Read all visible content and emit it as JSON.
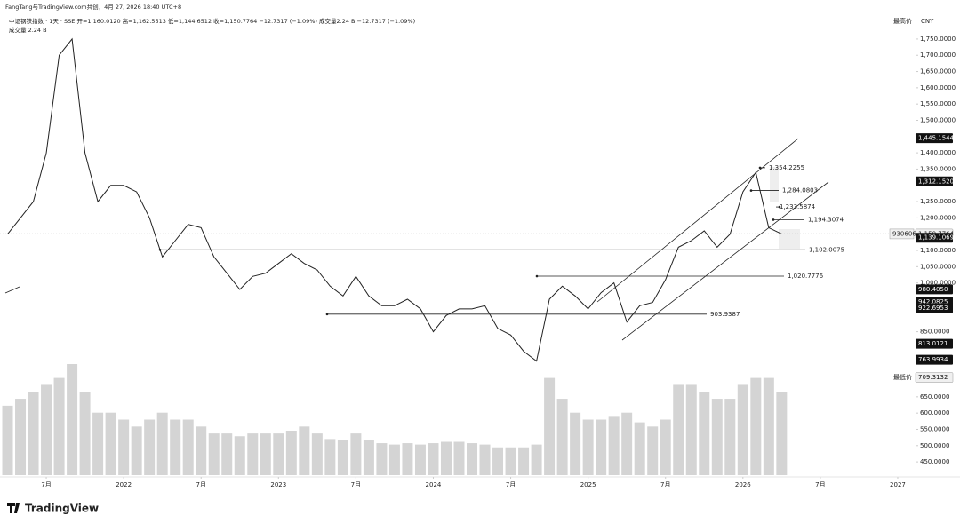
{
  "header": {
    "credit": "FangTang与TradingView.com共创，4月 27, 2026 18:40 UTC+8",
    "symbol_line": "中证钢铁指数 · 1天 · SSE  开=1,160.0120  高=1,162.5513  低=1,144.6512  收=1,150.7764  −12.7317 (−1.09%)  成交量2.24 B  −12.7317 (−1.09%)",
    "volume_line": "成交量  2.24 B"
  },
  "chart_data": {
    "type": "line",
    "x": [
      "2021-04",
      "2021-05",
      "2021-06",
      "2021-07",
      "2021-08",
      "2021-09",
      "2021-10",
      "2021-11",
      "2021-12",
      "2022-01",
      "2022-02",
      "2022-03",
      "2022-04",
      "2022-05",
      "2022-06",
      "2022-07",
      "2022-08",
      "2022-09",
      "2022-10",
      "2022-11",
      "2022-12",
      "2023-01",
      "2023-02",
      "2023-03",
      "2023-04",
      "2023-05",
      "2023-06",
      "2023-07",
      "2023-08",
      "2023-09",
      "2023-10",
      "2023-11",
      "2023-12",
      "2024-01",
      "2024-02",
      "2024-03",
      "2024-04",
      "2024-05",
      "2024-06",
      "2024-07",
      "2024-08",
      "2024-09",
      "2024-10",
      "2024-11",
      "2024-12",
      "2025-01",
      "2025-02",
      "2025-03",
      "2025-04",
      "2025-05",
      "2025-06",
      "2025-07",
      "2025-08",
      "2025-09",
      "2025-10",
      "2025-11",
      "2025-12",
      "2026-01",
      "2026-02",
      "2026-03",
      "2026-04"
    ],
    "series": [
      {
        "color": "#222222",
        "values": [
          1150,
          1200,
          1250,
          1400,
          1700,
          1750,
          1400,
          1250,
          1300,
          1300,
          1280,
          1200,
          1080,
          1130,
          1180,
          1170,
          1080,
          1030,
          980,
          1020,
          1030,
          1060,
          1090,
          1060,
          1040,
          990,
          960,
          1020,
          960,
          930,
          930,
          950,
          920,
          850,
          900,
          920,
          920,
          930,
          860,
          840,
          790,
          760,
          950,
          990,
          960,
          920,
          970,
          1000,
          880,
          930,
          940,
          1010,
          1110,
          1130,
          1160,
          1110,
          1150,
          1280,
          1340,
          1170,
          1150.7764
        ]
      }
    ],
    "volume": {
      "color": "#d4d4d4",
      "values": [
        5,
        5.5,
        6,
        6.5,
        7,
        8,
        6,
        4.5,
        4.5,
        4,
        3.5,
        4,
        4.5,
        4,
        4,
        3.5,
        3,
        3,
        2.8,
        3,
        3,
        3,
        3.2,
        3.5,
        3,
        2.6,
        2.5,
        3,
        2.5,
        2.3,
        2.2,
        2.3,
        2.2,
        2.3,
        2.4,
        2.4,
        2.3,
        2.2,
        2,
        2,
        2,
        2.2,
        7,
        5.5,
        4.5,
        4,
        4,
        4.2,
        4.5,
        3.8,
        3.5,
        4,
        6.5,
        6.5,
        6,
        5.5,
        5.5,
        6.5,
        7,
        7,
        6
      ]
    },
    "xlim": [
      "2021-03",
      "2027-03"
    ],
    "xticks": [
      {
        "value": "2021-07",
        "label": "7月"
      },
      {
        "value": "2022-01",
        "label": "2022"
      },
      {
        "value": "2022-07",
        "label": "7月"
      },
      {
        "value": "2023-01",
        "label": "2023"
      },
      {
        "value": "2023-07",
        "label": "7月"
      },
      {
        "value": "2024-01",
        "label": "2024"
      },
      {
        "value": "2024-07",
        "label": "7月"
      },
      {
        "value": "2025-01",
        "label": "2025"
      },
      {
        "value": "2025-07",
        "label": "7月"
      },
      {
        "value": "2026-01",
        "label": "2026"
      },
      {
        "value": "2026-07",
        "label": "7月"
      },
      {
        "value": "2027-01",
        "label": "2027"
      }
    ],
    "ylim": [
      423,
      1788
    ],
    "yticks": [
      {
        "value": 1750,
        "label": "1,750.0000"
      },
      {
        "value": 1700,
        "label": "1,700.0000"
      },
      {
        "value": 1650,
        "label": "1,650.0000"
      },
      {
        "value": 1600,
        "label": "1,600.0000"
      },
      {
        "value": 1550,
        "label": "1,550.0000"
      },
      {
        "value": 1500,
        "label": "1,500.0000"
      },
      {
        "value": 1400,
        "label": "1,400.0000"
      },
      {
        "value": 1350,
        "label": "1,350.0000"
      },
      {
        "value": 1250,
        "label": "1,250.0000"
      },
      {
        "value": 1200,
        "label": "1,200.0000"
      },
      {
        "value": 1100,
        "label": "1,100.0000"
      },
      {
        "value": 1050,
        "label": "1,050.0000"
      },
      {
        "value": 1000,
        "label": "1,000.0000"
      },
      {
        "value": 850,
        "label": "850.0000"
      },
      {
        "value": 650,
        "label": "650.0000"
      },
      {
        "value": 600,
        "label": "600.0000"
      },
      {
        "value": 550,
        "label": "550.0000"
      },
      {
        "value": 500,
        "label": "500.0000"
      },
      {
        "value": 450,
        "label": "450.0000"
      }
    ],
    "levels": [
      {
        "value": 1354.2255,
        "label": "1,354.2255"
      },
      {
        "value": 1284.0803,
        "label": "1,284.0803"
      },
      {
        "value": 1233.5874,
        "label": "1,233.5874"
      },
      {
        "value": 1194.3074,
        "label": "1,194.3074"
      },
      {
        "value": 1102.0075,
        "label": "1,102.0075"
      },
      {
        "value": 1020.7776,
        "label": "1,020.7776"
      },
      {
        "value": 903.9387,
        "label": "903.9387"
      }
    ],
    "price_tags": [
      {
        "value": 1445.1544,
        "label": "1,445.1544"
      },
      {
        "value": 1312.152,
        "label": "1,312.1520"
      },
      {
        "value": 1150.7764,
        "label": "1,150.7764"
      },
      {
        "value": 1139.1069,
        "label": "1,139.1069"
      },
      {
        "value": 980.405,
        "label": "980.4050"
      },
      {
        "value": 942.0825,
        "label": "942.0825"
      },
      {
        "value": 922.6953,
        "label": "922.6953"
      },
      {
        "value": 813.0121,
        "label": "813.0121"
      },
      {
        "value": 763.9934,
        "label": "763.9934"
      },
      {
        "value": 709.3132,
        "label": "709.3132"
      }
    ],
    "symbol_code": "930606",
    "high_label": "最高价",
    "low_label": "最低价",
    "currency": "CNY"
  },
  "footer": {
    "brand": "TradingView"
  }
}
